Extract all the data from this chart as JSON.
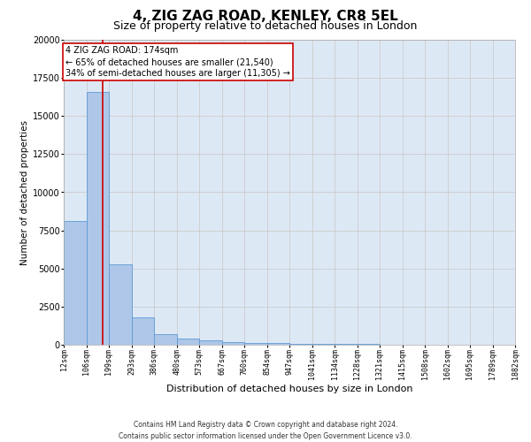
{
  "title1": "4, ZIG ZAG ROAD, KENLEY, CR8 5EL",
  "title2": "Size of property relative to detached houses in London",
  "xlabel": "Distribution of detached houses by size in London",
  "ylabel": "Number of detached properties",
  "footer1": "Contains HM Land Registry data © Crown copyright and database right 2024.",
  "footer2": "Contains public sector information licensed under the Open Government Licence v3.0.",
  "bar_edges": [
    12,
    106,
    199,
    293,
    386,
    480,
    573,
    667,
    760,
    854,
    947,
    1041,
    1134,
    1228,
    1321,
    1415,
    1508,
    1602,
    1695,
    1789,
    1882
  ],
  "bar_heights": [
    8100,
    16600,
    5300,
    1800,
    700,
    380,
    280,
    170,
    130,
    95,
    75,
    60,
    45,
    35,
    25,
    20,
    18,
    12,
    10,
    8
  ],
  "bar_color": "#aec6e8",
  "bar_edge_color": "#5b9bd5",
  "property_size": 174,
  "annotation_title": "4 ZIG ZAG ROAD: 174sqm",
  "annotation_line1": "← 65% of detached houses are smaller (21,540)",
  "annotation_line2": "34% of semi-detached houses are larger (11,305) →",
  "annotation_box_color": "#ffffff",
  "annotation_box_edge": "#cc0000",
  "vline_color": "#cc0000",
  "tick_labels": [
    "12sqm",
    "106sqm",
    "199sqm",
    "293sqm",
    "386sqm",
    "480sqm",
    "573sqm",
    "667sqm",
    "760sqm",
    "854sqm",
    "947sqm",
    "1041sqm",
    "1134sqm",
    "1228sqm",
    "1321sqm",
    "1415sqm",
    "1508sqm",
    "1602sqm",
    "1695sqm",
    "1789sqm",
    "1882sqm"
  ],
  "ylim": [
    0,
    20000
  ],
  "grid_color": "#cccccc",
  "bg_color": "#dde8f5",
  "title1_fontsize": 11,
  "title2_fontsize": 9,
  "ylabel_fontsize": 7.5,
  "xlabel_fontsize": 8,
  "tick_fontsize": 6,
  "ytick_fontsize": 7,
  "footer_fontsize": 5.5,
  "annotation_fontsize": 7
}
